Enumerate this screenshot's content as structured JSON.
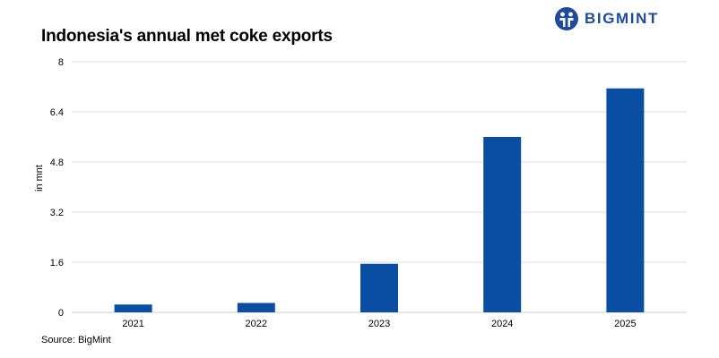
{
  "brand": {
    "name": "BIGMINT",
    "color": "#1f4b9b"
  },
  "source": "Source: BigMint",
  "chart_data": {
    "type": "bar",
    "title": "Indonesia's annual met coke exports",
    "xlabel": "",
    "ylabel": "in mnt",
    "categories": [
      "2021",
      "2022",
      "2023",
      "2024",
      "2025"
    ],
    "values": [
      0.25,
      0.3,
      1.55,
      5.6,
      7.15
    ],
    "ylim": [
      0,
      8
    ],
    "yticks": [
      "0",
      "1.6",
      "3.2",
      "4.8",
      "6.4",
      "8"
    ],
    "ytick_values": [
      0,
      1.6,
      3.2,
      4.8,
      6.4,
      8
    ],
    "grid": true,
    "bar_color": "#0a4ea3"
  }
}
